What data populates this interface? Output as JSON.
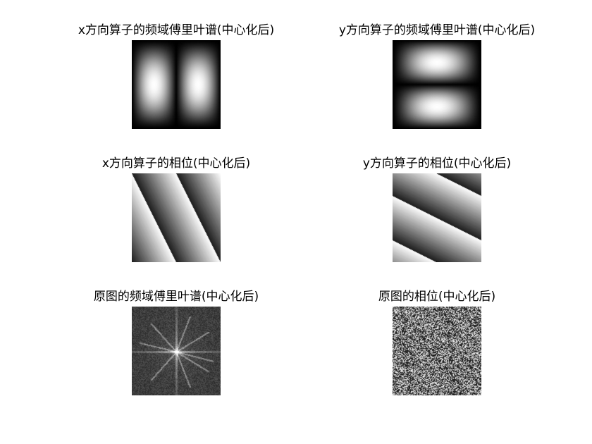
{
  "figure": {
    "panels": [
      {
        "title": "x方向算子的频域傅里叶谱(中心化后)"
      },
      {
        "title": "y方向算子的频域傅里叶谱(中心化后)"
      },
      {
        "title": "x方向算子的相位(中心化后)"
      },
      {
        "title": "y方向算子的相位(中心化后)"
      },
      {
        "title": "原图的频域傅里叶谱(中心化后)"
      },
      {
        "title": "原图的相位(中心化后)"
      }
    ]
  }
}
